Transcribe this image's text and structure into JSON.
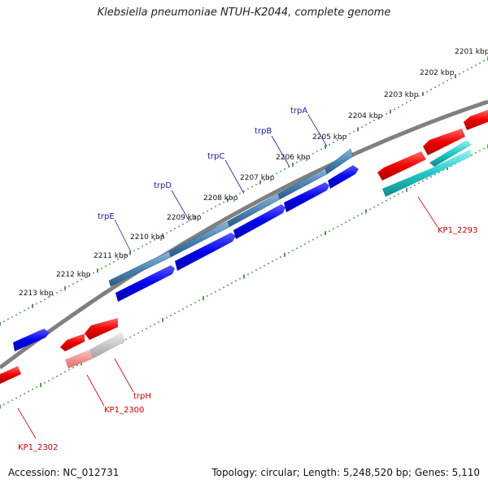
{
  "title": "Klebsiella pneumoniae NTUH-K2044, complete genome",
  "accession": "Accession: NC_012731",
  "summary": "Topology: circular; Length: 5,248,520 bp; Genes: 5,110",
  "kbp_labels": [
    "2201 kbp",
    "2202 kbp",
    "2203 kbp",
    "2204 kbp",
    "2205 kbp",
    "2206 kbp",
    "2207 kbp",
    "2208 kbp",
    "2209 kbp",
    "2210 kbp",
    "2211 kbp",
    "2212 kbp",
    "2213 kbp"
  ],
  "genes": {
    "trpA": "trpA",
    "trpB": "trpB",
    "trpC": "trpC",
    "trpD": "trpD",
    "trpE": "trpE",
    "KP1_2293": "KP1_2293",
    "KP1_2300": "KP1_2300",
    "trpH": "trpH",
    "KP1_2302": "KP1_2302"
  },
  "colors": {
    "forward_cds": "#0000ee",
    "reverse_cds": "#ee0000",
    "highlight_operon": "#4a86b8",
    "highlight_teal": "#20c8c8",
    "backbone": "#808080",
    "tick": "#2a7a2a"
  }
}
